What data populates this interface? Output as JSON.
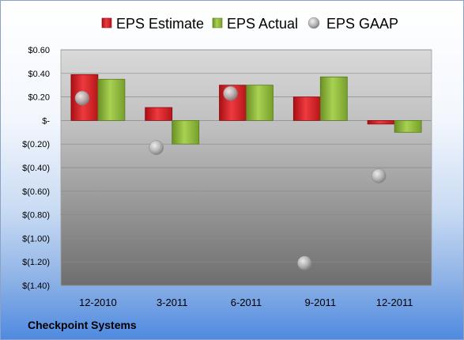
{
  "chart_data": {
    "type": "bar",
    "categories": [
      "12-2010",
      "3-2011",
      "6-2011",
      "9-2011",
      "12-2011"
    ],
    "series": [
      {
        "name": "EPS Estimate",
        "type": "bar",
        "color": "#d9262b",
        "values": [
          0.39,
          0.11,
          0.3,
          0.2,
          -0.03
        ]
      },
      {
        "name": "EPS Actual",
        "type": "bar",
        "color": "#8db53a",
        "values": [
          0.35,
          -0.2,
          0.3,
          0.37,
          -0.1
        ]
      },
      {
        "name": "EPS GAAP",
        "type": "scatter",
        "color": "#b0b0b0",
        "values": [
          0.19,
          -0.23,
          0.23,
          -1.21,
          -0.47
        ]
      }
    ],
    "ylim": [
      -1.4,
      0.6
    ],
    "ytick_values": [
      0.6,
      0.4,
      0.2,
      0.0,
      -0.2,
      -0.4,
      -0.6,
      -0.8,
      -1.0,
      -1.2,
      -1.4
    ],
    "ytick_labels": [
      "$0.60",
      "$0.40",
      "$0.20",
      "$-",
      "$(0.20)",
      "$(0.40)",
      "$(0.60)",
      "$(0.80)",
      "$(1.00)",
      "$(1.20)",
      "$(1.40)"
    ],
    "legend_position": "top",
    "grid": true
  },
  "footer": {
    "company": "Checkpoint Systems"
  }
}
